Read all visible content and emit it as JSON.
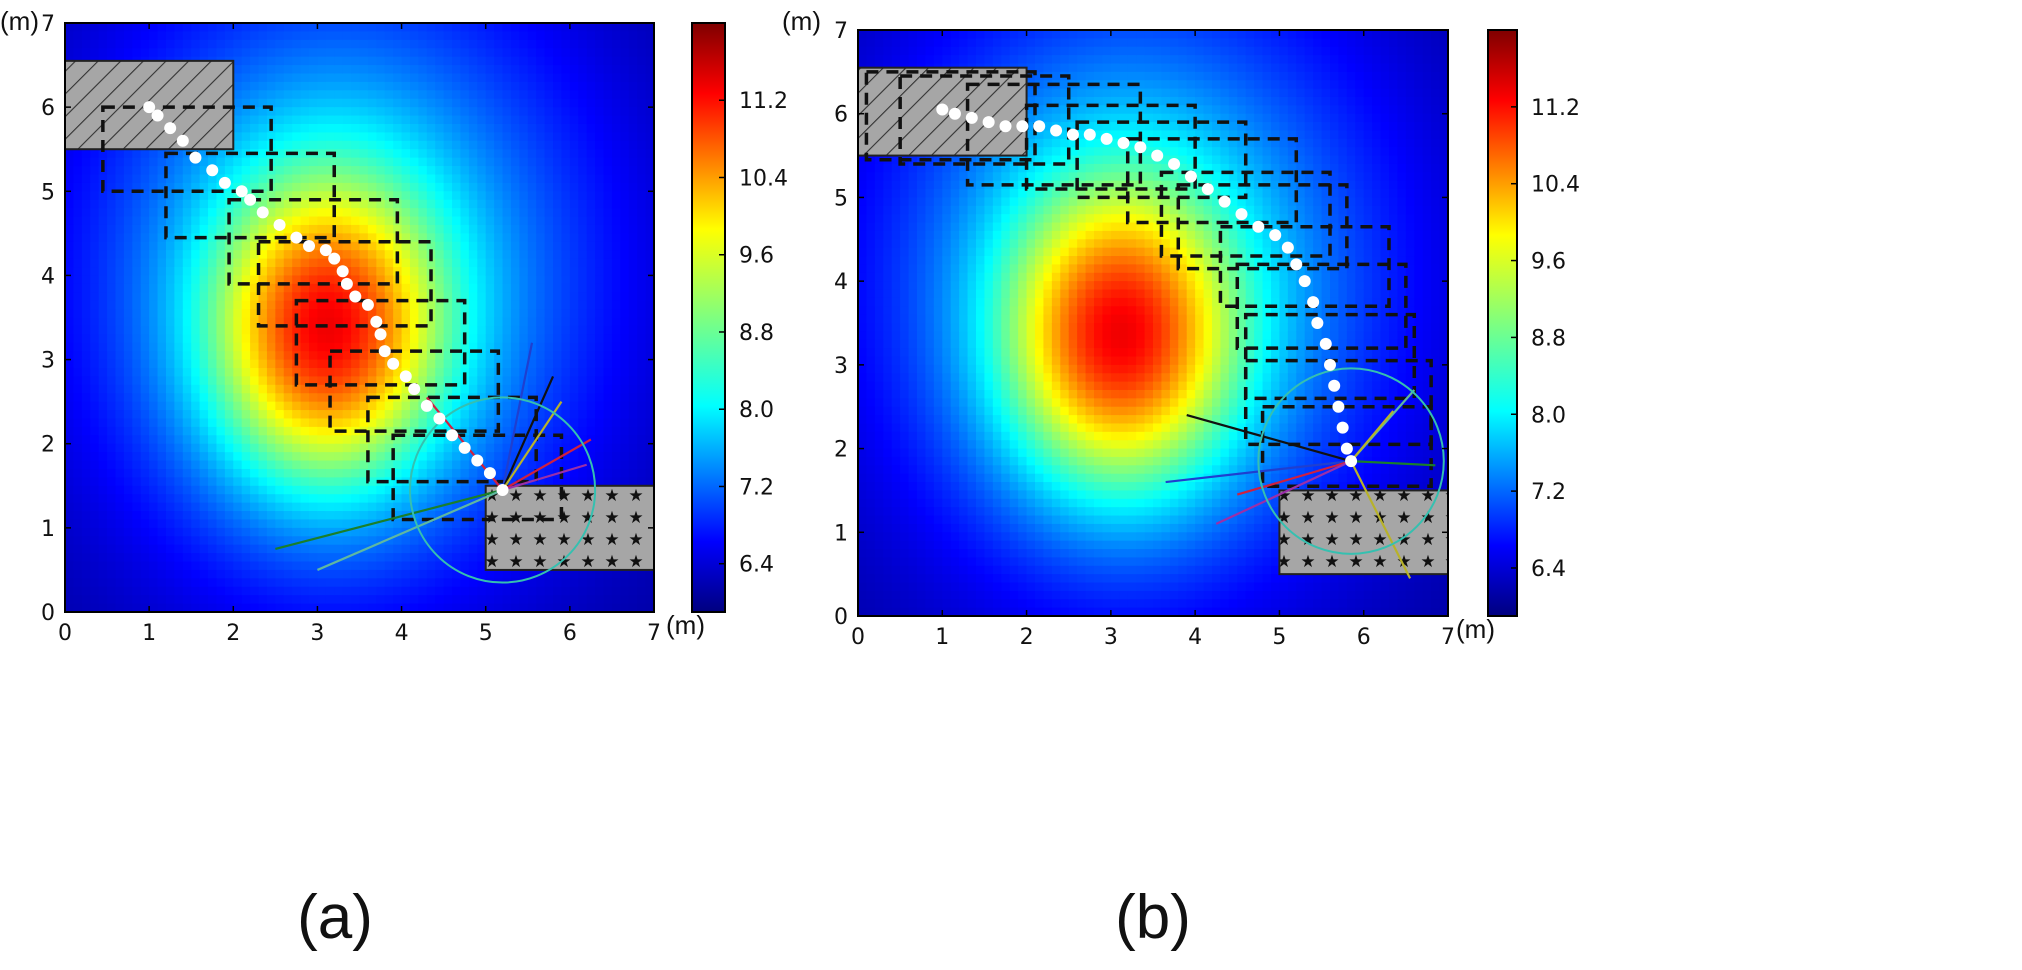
{
  "chart_data": [
    {
      "type": "heatmap",
      "panel_label": "(a)",
      "x_unit": "(m)",
      "y_unit": "(m)",
      "xlim": [
        0,
        7
      ],
      "ylim": [
        0,
        7
      ],
      "x_ticks": [
        "0",
        "1",
        "2",
        "3",
        "4",
        "5",
        "6",
        "7"
      ],
      "y_ticks": [
        "0",
        "1",
        "2",
        "3",
        "4",
        "5",
        "6",
        "7"
      ],
      "colorbar": {
        "min": 5.9,
        "max": 12.0,
        "ticks": [
          "6.4",
          "7.2",
          "8.0",
          "8.8",
          "9.6",
          "10.4",
          "11.2"
        ]
      },
      "field_peaks": [
        {
          "x": 3.1,
          "y": 3.3,
          "value": 12.0,
          "sx": 0.95,
          "sy": 1.25
        },
        {
          "x": 3.3,
          "y": 4.0,
          "value": 9.5,
          "sx": 2.2,
          "sy": 2.6
        }
      ],
      "field_base": 6.0,
      "obstacle_hatched": {
        "x0": 0,
        "y0": 5.5,
        "x1": 2,
        "y1": 6.55
      },
      "obstacle_starred": {
        "x0": 5,
        "y0": 0.5,
        "x1": 7,
        "y1": 1.5
      },
      "path": [
        [
          1.0,
          6.0
        ],
        [
          1.1,
          5.9
        ],
        [
          1.25,
          5.75
        ],
        [
          1.4,
          5.6
        ],
        [
          1.55,
          5.4
        ],
        [
          1.75,
          5.25
        ],
        [
          1.9,
          5.1
        ],
        [
          2.1,
          5.0
        ],
        [
          2.2,
          4.9
        ],
        [
          2.35,
          4.75
        ],
        [
          2.55,
          4.6
        ],
        [
          2.75,
          4.45
        ],
        [
          2.9,
          4.35
        ],
        [
          3.1,
          4.3
        ],
        [
          3.2,
          4.2
        ],
        [
          3.3,
          4.05
        ],
        [
          3.35,
          3.9
        ],
        [
          3.45,
          3.75
        ],
        [
          3.6,
          3.65
        ],
        [
          3.7,
          3.45
        ],
        [
          3.75,
          3.3
        ],
        [
          3.8,
          3.1
        ],
        [
          3.9,
          2.95
        ],
        [
          4.05,
          2.8
        ],
        [
          4.15,
          2.65
        ],
        [
          4.3,
          2.45
        ],
        [
          4.45,
          2.3
        ],
        [
          4.6,
          2.1
        ],
        [
          4.75,
          1.95
        ],
        [
          4.9,
          1.8
        ],
        [
          5.05,
          1.65
        ],
        [
          5.2,
          1.45
        ]
      ],
      "boxes": [
        [
          0.45,
          5.0,
          2.45,
          6.0
        ],
        [
          1.2,
          4.45,
          3.2,
          5.45
        ],
        [
          1.95,
          3.9,
          3.95,
          4.9
        ],
        [
          2.3,
          3.4,
          4.35,
          4.4
        ],
        [
          2.75,
          2.7,
          4.75,
          3.7
        ],
        [
          3.15,
          2.15,
          5.15,
          3.1
        ],
        [
          3.6,
          1.55,
          5.6,
          2.55
        ],
        [
          3.9,
          1.1,
          5.9,
          2.1
        ]
      ],
      "sensor": {
        "x": 5.2,
        "y": 1.45,
        "r": 1.1
      },
      "rays": [
        {
          "x": 5.55,
          "y": 3.2,
          "color": "#1f3fd0"
        },
        {
          "x": 5.8,
          "y": 2.8,
          "color": "#111111"
        },
        {
          "x": 5.9,
          "y": 2.5,
          "color": "#b8b22a"
        },
        {
          "x": 6.25,
          "y": 2.05,
          "color": "#d02040"
        },
        {
          "x": 6.2,
          "y": 1.75,
          "color": "#9b2fa8"
        },
        {
          "x": 2.5,
          "y": 0.75,
          "color": "#1a7f2a"
        },
        {
          "x": 3.0,
          "y": 0.5,
          "color": "#5fb8a0"
        },
        {
          "x": 4.3,
          "y": 2.55,
          "color": "#d02040"
        }
      ]
    },
    {
      "type": "heatmap",
      "panel_label": "(b)",
      "x_unit": "(m)",
      "y_unit": "(m)",
      "xlim": [
        0,
        7
      ],
      "ylim": [
        0,
        7
      ],
      "x_ticks": [
        "0",
        "1",
        "2",
        "3",
        "4",
        "5",
        "6",
        "7"
      ],
      "y_ticks": [
        "0",
        "1",
        "2",
        "3",
        "4",
        "5",
        "6",
        "7"
      ],
      "colorbar": {
        "min": 5.9,
        "max": 12.0,
        "ticks": [
          "6.4",
          "7.2",
          "8.0",
          "8.8",
          "9.6",
          "10.4",
          "11.2"
        ]
      },
      "field_peaks": [
        {
          "x": 3.1,
          "y": 3.3,
          "value": 12.0,
          "sx": 0.95,
          "sy": 1.25
        },
        {
          "x": 3.3,
          "y": 4.0,
          "value": 9.5,
          "sx": 2.2,
          "sy": 2.6
        }
      ],
      "field_base": 6.0,
      "obstacle_hatched": {
        "x0": 0,
        "y0": 5.5,
        "x1": 2,
        "y1": 6.55
      },
      "obstacle_starred": {
        "x0": 5,
        "y0": 0.5,
        "x1": 7,
        "y1": 1.5
      },
      "path": [
        [
          1.0,
          6.05
        ],
        [
          1.15,
          6.0
        ],
        [
          1.35,
          5.95
        ],
        [
          1.55,
          5.9
        ],
        [
          1.75,
          5.85
        ],
        [
          1.95,
          5.85
        ],
        [
          2.15,
          5.85
        ],
        [
          2.35,
          5.8
        ],
        [
          2.55,
          5.75
        ],
        [
          2.75,
          5.75
        ],
        [
          2.95,
          5.7
        ],
        [
          3.15,
          5.65
        ],
        [
          3.35,
          5.6
        ],
        [
          3.55,
          5.5
        ],
        [
          3.75,
          5.4
        ],
        [
          3.95,
          5.25
        ],
        [
          4.15,
          5.1
        ],
        [
          4.35,
          4.95
        ],
        [
          4.55,
          4.8
        ],
        [
          4.75,
          4.65
        ],
        [
          4.95,
          4.55
        ],
        [
          5.1,
          4.4
        ],
        [
          5.2,
          4.2
        ],
        [
          5.3,
          4.0
        ],
        [
          5.4,
          3.75
        ],
        [
          5.45,
          3.5
        ],
        [
          5.55,
          3.25
        ],
        [
          5.6,
          3.0
        ],
        [
          5.65,
          2.75
        ],
        [
          5.7,
          2.5
        ],
        [
          5.75,
          2.25
        ],
        [
          5.8,
          2.0
        ],
        [
          5.85,
          1.85
        ]
      ],
      "boxes": [
        [
          0.1,
          5.45,
          2.1,
          6.5
        ],
        [
          0.5,
          5.4,
          2.5,
          6.45
        ],
        [
          1.3,
          5.15,
          3.35,
          6.35
        ],
        [
          2.0,
          5.1,
          4.0,
          6.1
        ],
        [
          2.6,
          5.0,
          4.6,
          5.9
        ],
        [
          3.2,
          4.7,
          5.2,
          5.7
        ],
        [
          3.6,
          4.3,
          5.6,
          5.3
        ],
        [
          3.8,
          4.15,
          5.8,
          5.15
        ],
        [
          4.3,
          3.7,
          6.3,
          4.65
        ],
        [
          4.5,
          3.2,
          6.5,
          4.2
        ],
        [
          4.6,
          2.6,
          6.6,
          3.6
        ],
        [
          4.6,
          2.05,
          6.8,
          3.05
        ],
        [
          4.8,
          1.55,
          6.8,
          2.5
        ]
      ],
      "sensor": {
        "x": 5.85,
        "y": 1.85,
        "r": 1.1
      },
      "rays": [
        {
          "x": 3.9,
          "y": 2.4,
          "color": "#111111"
        },
        {
          "x": 3.65,
          "y": 1.6,
          "color": "#1f3fd0"
        },
        {
          "x": 4.5,
          "y": 1.45,
          "color": "#d02040"
        },
        {
          "x": 4.25,
          "y": 1.1,
          "color": "#9b2fa8"
        },
        {
          "x": 6.6,
          "y": 2.7,
          "color": "#5fb8a0"
        },
        {
          "x": 6.85,
          "y": 1.8,
          "color": "#1a7f2a"
        },
        {
          "x": 6.55,
          "y": 0.45,
          "color": "#b8b22a"
        },
        {
          "x": 6.35,
          "y": 2.45,
          "color": "#b8b22a"
        }
      ]
    }
  ]
}
